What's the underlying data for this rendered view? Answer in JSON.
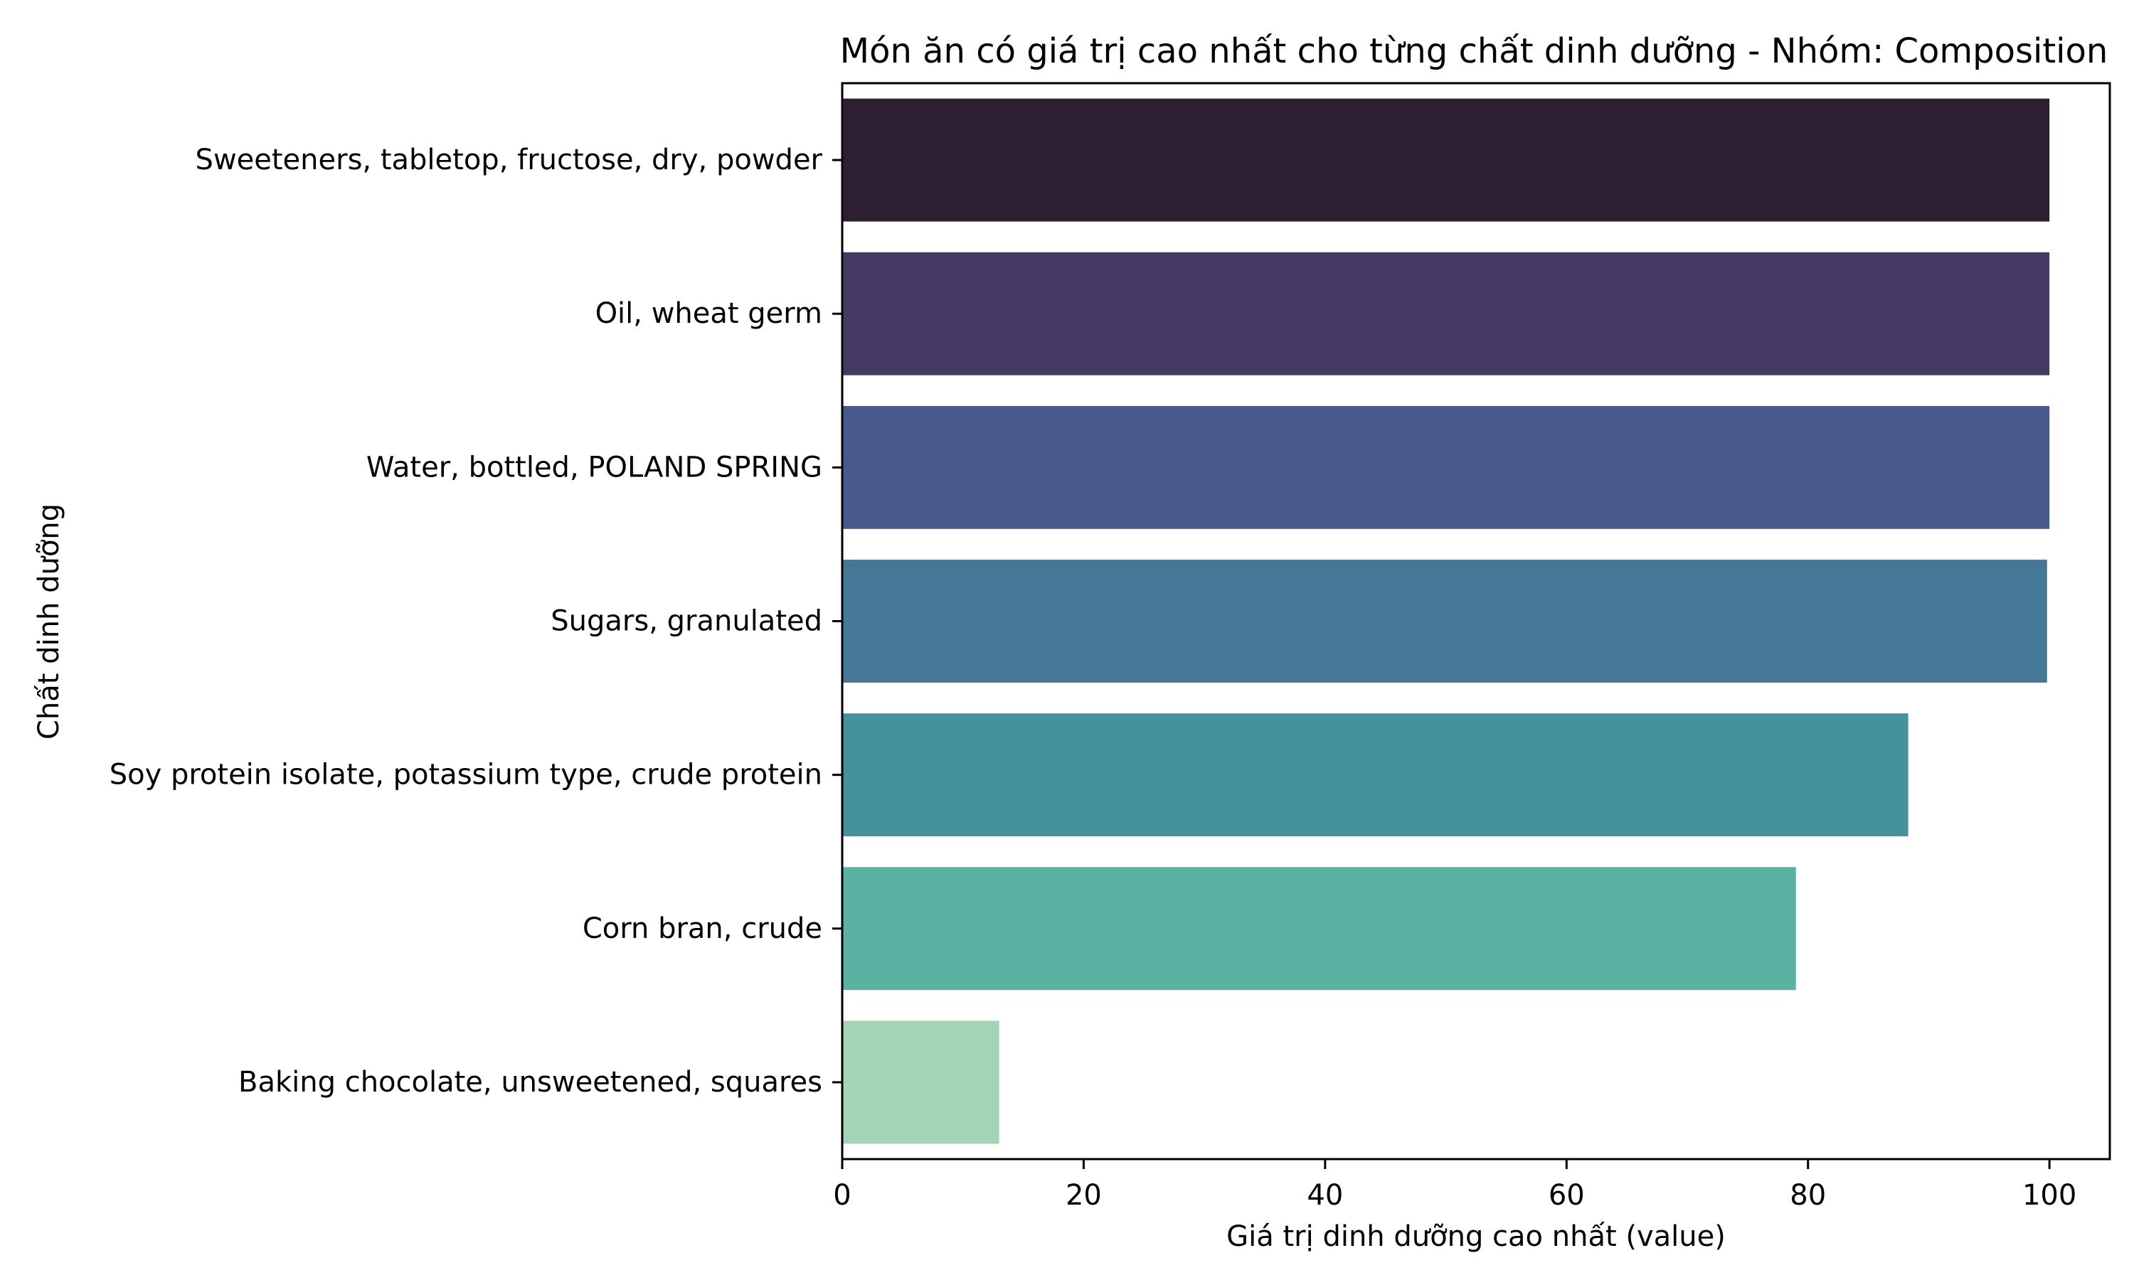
{
  "chart_data": {
    "type": "bar",
    "orientation": "horizontal",
    "title": "Món ăn có giá trị cao nhất cho từng chất dinh dưỡng - Nhóm: Composition",
    "xlabel": "Giá trị dinh dưỡng cao nhất (value)",
    "ylabel": "Chất dinh dưỡng",
    "xlim": [
      0,
      105
    ],
    "xticks": [
      0,
      20,
      40,
      60,
      80,
      100
    ],
    "grid": false,
    "legend": "none",
    "categories": [
      "Sweeteners, tabletop, fructose, dry, powder",
      "Oil, wheat germ",
      "Water, bottled, POLAND SPRING",
      "Sugars, granulated",
      "Soy protein isolate, potassium type, crude protein",
      "Corn bran, crude",
      "Baking chocolate, unsweetened, squares"
    ],
    "values": [
      100,
      100,
      100,
      99.8,
      88.3,
      79,
      13
    ],
    "colors": [
      "#2d1f31",
      "#443a63",
      "#495b8c",
      "#457796",
      "#46929b",
      "#5ab3a2",
      "#a3d4b6"
    ]
  }
}
